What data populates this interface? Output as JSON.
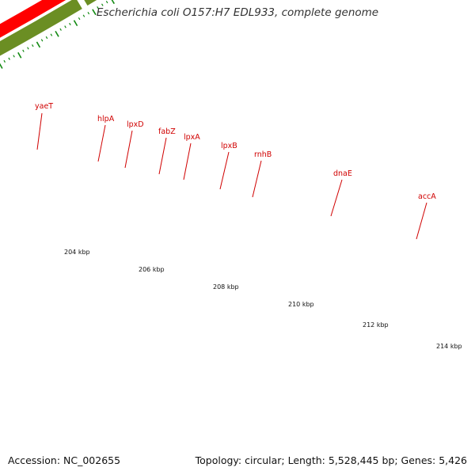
{
  "header": {
    "title": "Escherichia coli O157:H7 EDL933, complete genome"
  },
  "footer": {
    "accession": "Accession: NC_002655",
    "summary": "Topology: circular; Length: 5,528,445 bp; Genes: 5,426"
  },
  "genes": [
    "yaeT",
    "hlpA",
    "lpxD",
    "fabZ",
    "lpxA",
    "lpxB",
    "rnhB",
    "dnaE",
    "accA"
  ],
  "scale_labels": [
    "204 kbp",
    "206 kbp",
    "208 kbp",
    "210 kbp",
    "212 kbp",
    "214 kbp"
  ],
  "colors": {
    "feature_red": "#ff0000",
    "tick_green": "#138a13",
    "backbone": "#808080",
    "olive": "#6b8e23",
    "purple": "#7b62d6",
    "magenta": "#ff1493",
    "steelblue": "#4682b4",
    "label_red": "#d00000"
  }
}
